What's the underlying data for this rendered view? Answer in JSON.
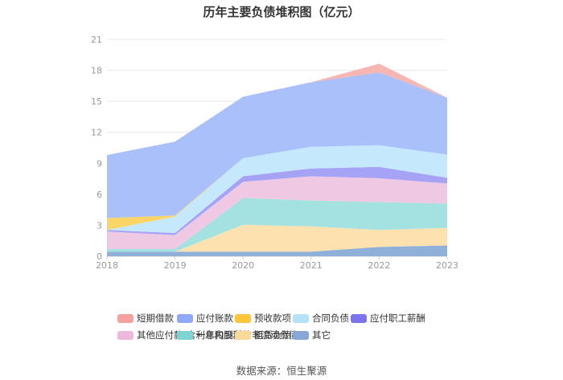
{
  "chart_data": {
    "type": "area",
    "stacked": true,
    "title": "历年主要负债堆积图（亿元）",
    "categories": [
      "2018",
      "2019",
      "2020",
      "2021",
      "2022",
      "2023"
    ],
    "ylim": [
      0,
      21
    ],
    "yticks": [
      0,
      3,
      6,
      9,
      12,
      15,
      18,
      21
    ],
    "grid": true,
    "legend_position": "bottom",
    "series": [
      {
        "name": "其它",
        "color": "#8eb0d9",
        "values": [
          0.45,
          0.45,
          0.45,
          0.45,
          0.9,
          1.05
        ]
      },
      {
        "name": "租赁负债",
        "color": "#fde2b0",
        "values": [
          0.0,
          0.0,
          2.6,
          2.45,
          1.65,
          1.7
        ]
      },
      {
        "name": "一年内到期的非流动负债",
        "color": "#a4e2e1",
        "values": [
          0.25,
          0.25,
          2.6,
          2.5,
          2.7,
          2.35
        ]
      },
      {
        "name": "其他应付款(含利息和股利)",
        "color": "#efc9e3",
        "values": [
          1.7,
          1.35,
          1.55,
          2.35,
          2.3,
          1.95
        ]
      },
      {
        "name": "应付职工薪酬",
        "color": "#a6a2f6",
        "values": [
          0.15,
          0.2,
          0.55,
          0.75,
          1.1,
          0.55
        ]
      },
      {
        "name": "合同负债",
        "color": "#c6e8fc",
        "values": [
          0.0,
          1.6,
          1.75,
          2.1,
          2.1,
          2.25
        ]
      },
      {
        "name": "预收款项",
        "color": "#fdd567",
        "values": [
          1.15,
          0.1,
          0.0,
          0.0,
          0.0,
          0.0
        ]
      },
      {
        "name": "应付账款",
        "color": "#a9c0fb",
        "values": [
          6.1,
          7.15,
          5.95,
          6.25,
          7.05,
          5.5
        ]
      },
      {
        "name": "短期借款",
        "color": "#f6b6b2",
        "values": [
          0.0,
          0.0,
          0.0,
          0.0,
          0.85,
          0.0
        ]
      }
    ],
    "legend": [
      {
        "name": "短期借款",
        "color": "#f4a29d"
      },
      {
        "name": "应付账款",
        "color": "#8fa8f7"
      },
      {
        "name": "预收款项",
        "color": "#fcc63b"
      },
      {
        "name": "合同负债",
        "color": "#b6e2f7"
      },
      {
        "name": "应付职工薪酬",
        "color": "#7b74ee"
      },
      {
        "name": "其他应付款(含利息和股利)",
        "color": "#ecb9dd"
      },
      {
        "name": "一年内到期的非流动负债",
        "color": "#7dd4d2"
      },
      {
        "name": "租赁负债",
        "color": "#fbd998"
      },
      {
        "name": "其它",
        "color": "#86a8d6"
      }
    ]
  },
  "source": "数据来源：恒生聚源"
}
